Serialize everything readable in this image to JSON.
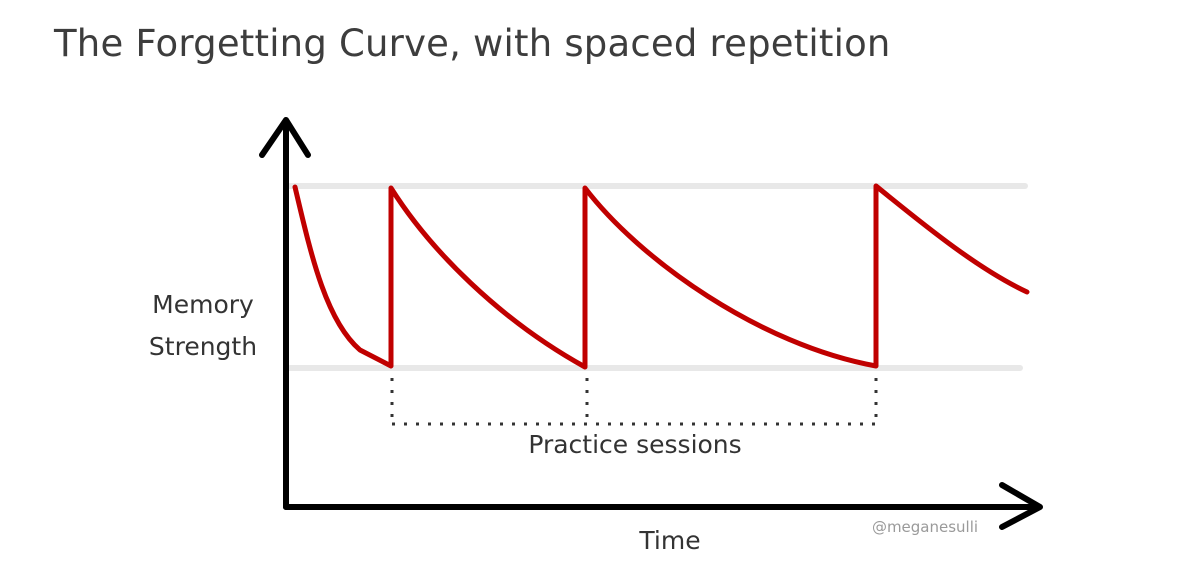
{
  "title": "The Forgetting Curve, with spaced repetition",
  "y_axis_label_lines": [
    "Memory",
    "Strength"
  ],
  "x_axis_label": "Time",
  "practice_label": "Practice sessions",
  "watermark": "@meganesulli",
  "colors": {
    "curve": "#c00000",
    "axis": "#000000",
    "guide_lines": "#e8e8e8",
    "dotted": "#333333"
  }
}
